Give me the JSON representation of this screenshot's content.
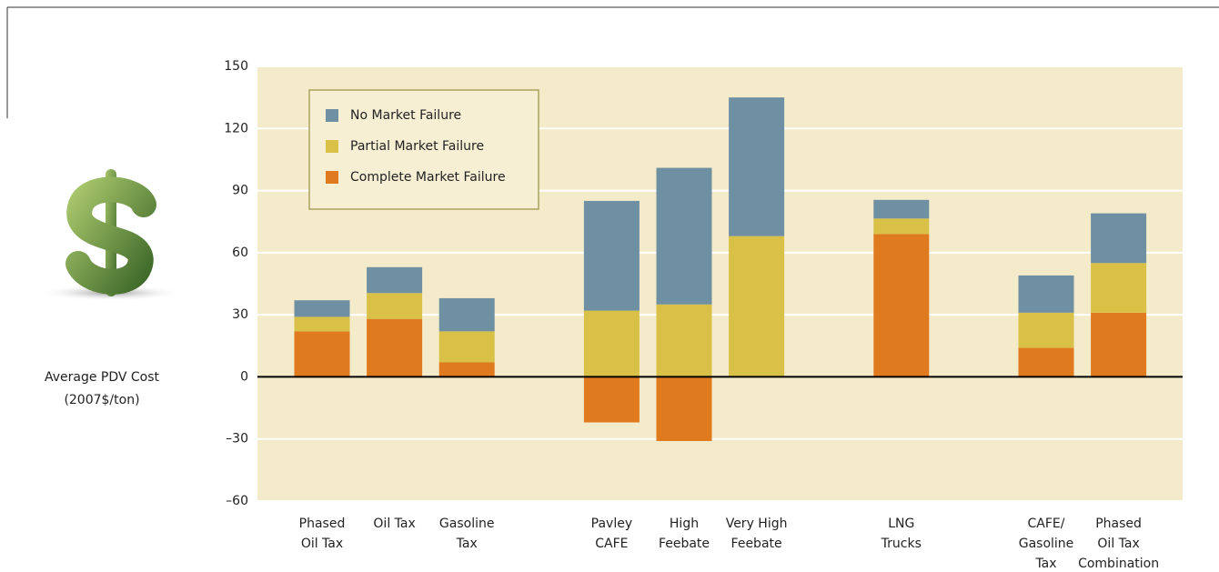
{
  "chart_data": {
    "type": "stacked_bar",
    "y_label": [
      "Average PDV Cost",
      "(2007$/ton)"
    ],
    "categories": [
      [
        "Phased",
        "Oil Tax"
      ],
      [
        "Oil Tax"
      ],
      [
        "Gasoline",
        "Tax"
      ],
      null,
      [
        "Pavley",
        "CAFE"
      ],
      [
        "High",
        "Feebate"
      ],
      [
        "Very High",
        "Feebate"
      ],
      null,
      [
        "LNG",
        "Trucks"
      ],
      null,
      [
        "CAFE/",
        "Gasoline",
        "Tax"
      ],
      [
        "Phased",
        "Oil Tax",
        "Combination"
      ]
    ],
    "series": [
      {
        "name": "No Market Failure",
        "color": "#6f8fa3",
        "values": [
          8,
          12.5,
          16,
          null,
          53,
          66,
          67,
          null,
          9,
          null,
          18,
          24
        ]
      },
      {
        "name": "Partial Market Failure",
        "color": "#d8c146",
        "values": [
          7,
          12.5,
          15,
          null,
          32,
          35,
          68,
          null,
          7.5,
          null,
          17,
          24
        ]
      },
      {
        "name": "Complete Market Failure",
        "color": "#e07a1e",
        "values": [
          22,
          28,
          7,
          null,
          -22,
          -31,
          0,
          null,
          69,
          null,
          14,
          31
        ]
      }
    ],
    "ylim": [
      -60,
      150
    ],
    "yticks": [
      {
        "value": -60,
        "label": "–60"
      },
      {
        "value": -30,
        "label": "–30"
      },
      0,
      30,
      60,
      90,
      120,
      150
    ],
    "grid": true,
    "legend": "upper left"
  }
}
